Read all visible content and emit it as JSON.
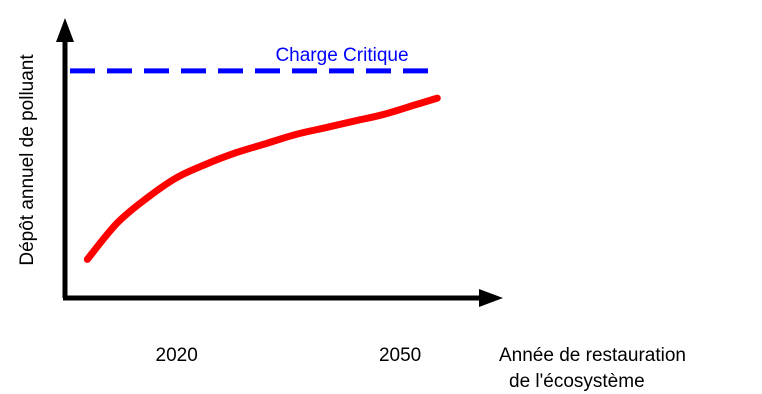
{
  "chart_data": {
    "type": "line",
    "ylabel": "Dépôt annuel de polluant",
    "xlabel_lines": [
      "Année de restauration",
      "de l'écosystème"
    ],
    "x_ticks": [
      "2020",
      "2050"
    ],
    "series": [
      {
        "name": "",
        "color": "#ff0000",
        "x": [
          2008,
          2012,
          2016,
          2020,
          2024,
          2028,
          2032,
          2036,
          2040,
          2044,
          2048,
          2052,
          2055
        ],
        "y": [
          0.17,
          0.33,
          0.44,
          0.53,
          0.59,
          0.64,
          0.68,
          0.72,
          0.75,
          0.78,
          0.81,
          0.85,
          0.88
        ]
      }
    ],
    "reference_line": {
      "label": "Charge Critique",
      "y": 1.0,
      "color": "#0000ff",
      "style": "dashed"
    },
    "xlim": [
      2005,
      2061
    ],
    "ylim": [
      0,
      1.18
    ],
    "grid": false
  }
}
